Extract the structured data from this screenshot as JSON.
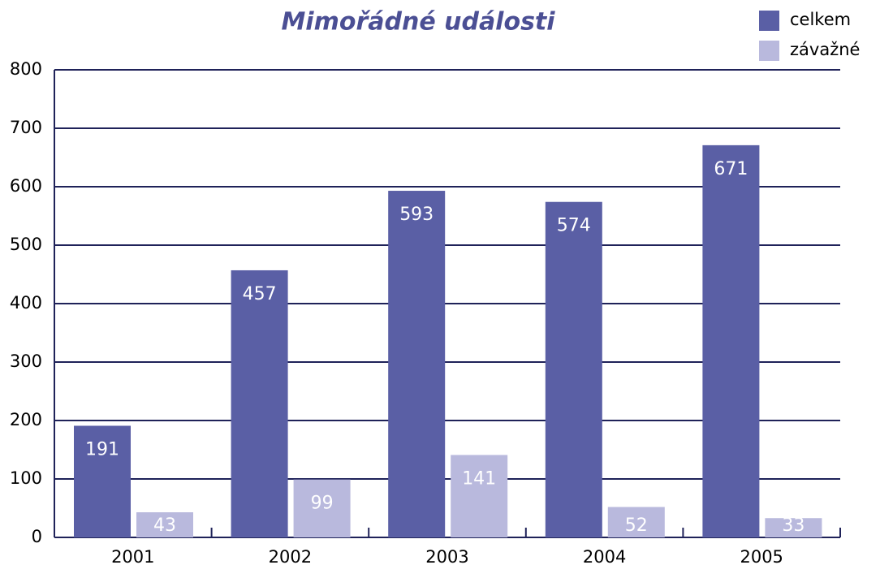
{
  "chart_data": {
    "type": "bar",
    "title": "Mimořádné události",
    "categories": [
      "2001",
      "2002",
      "2003",
      "2004",
      "2005"
    ],
    "series": [
      {
        "name": "celkem",
        "color": "#5a5fa5",
        "values": [
          191,
          457,
          593,
          574,
          671
        ]
      },
      {
        "name": "závažné",
        "color": "#b9b9dd",
        "values": [
          43,
          99,
          141,
          52,
          33
        ]
      }
    ],
    "ylim": [
      0,
      800
    ],
    "yticks": [
      0,
      100,
      200,
      300,
      400,
      500,
      600,
      700,
      800
    ],
    "grid": true,
    "legend": "top-right"
  }
}
